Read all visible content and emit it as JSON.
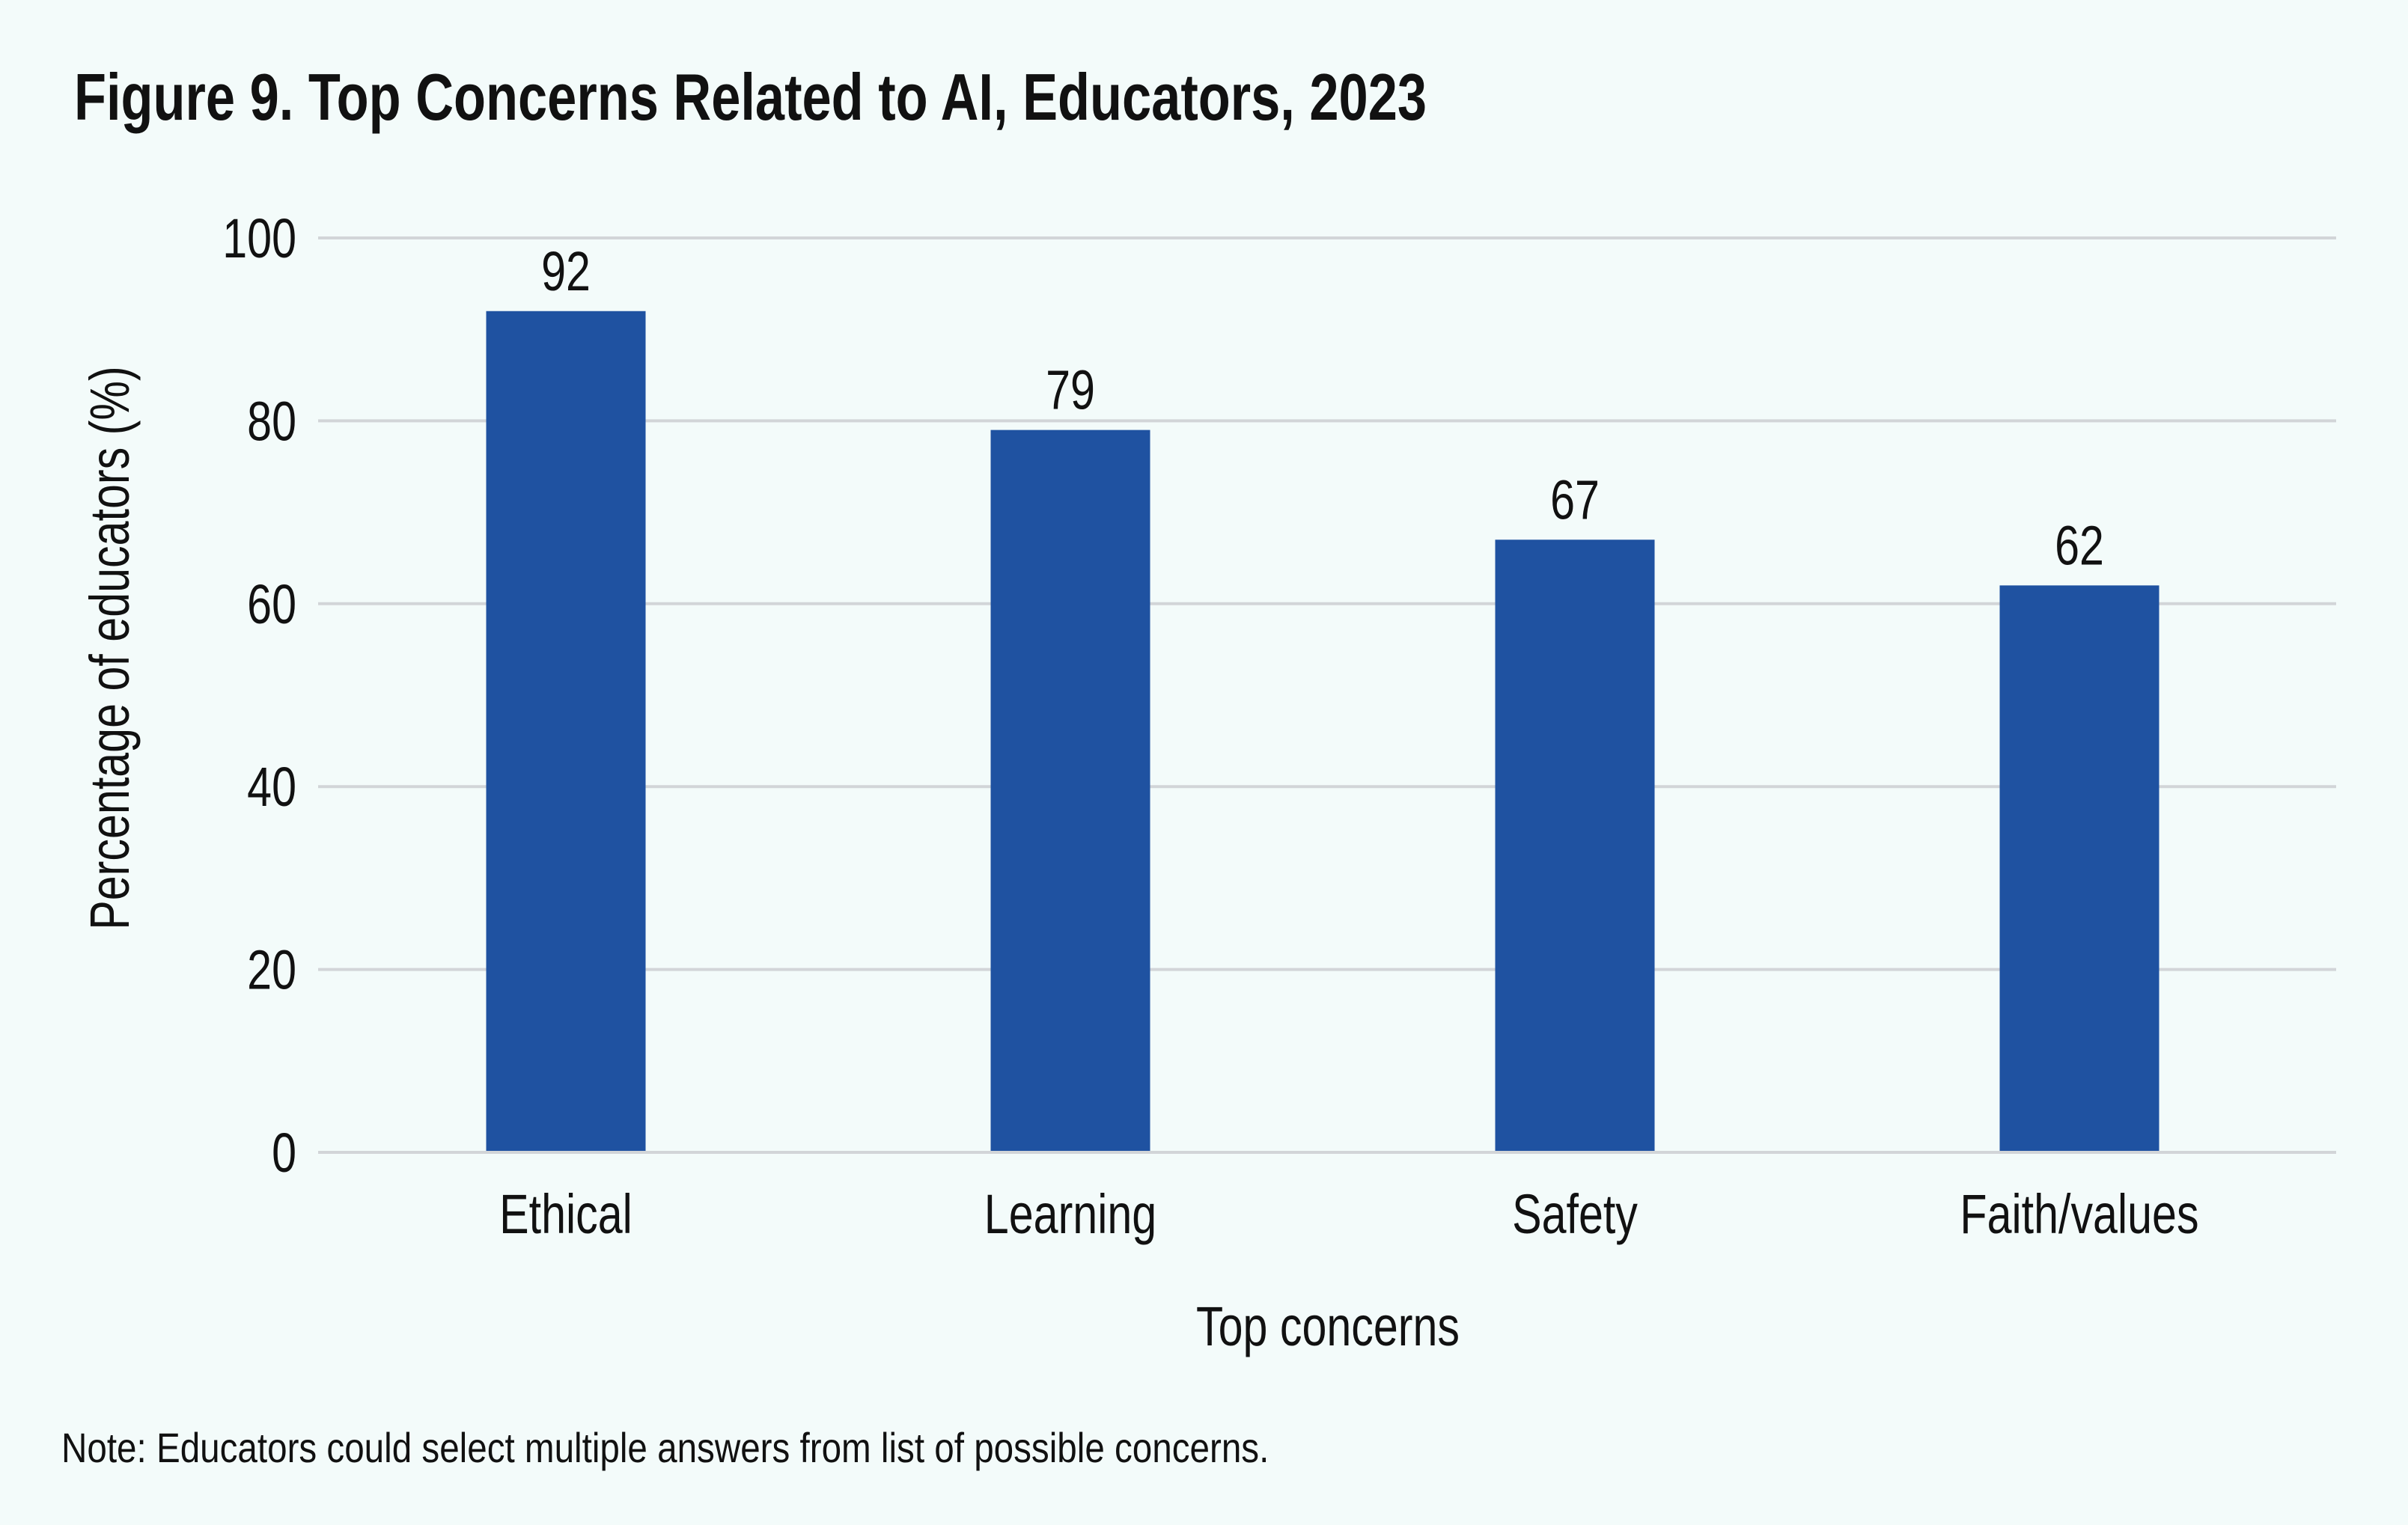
{
  "colors": {
    "background": "#f3fbfa",
    "bar": "#1f52a1",
    "grid": "#d2d5d8",
    "text": "#111111"
  },
  "chart_data": {
    "type": "bar",
    "title": "Figure 9. Top Concerns Related to AI, Educators, 2023",
    "xlabel": "Top concerns",
    "ylabel": "Percentage of educators (%)",
    "categories": [
      "Ethical",
      "Learning",
      "Safety",
      "Faith/values"
    ],
    "values": [
      92,
      79,
      67,
      62
    ],
    "data_labels": [
      "92",
      "79",
      "67",
      "62"
    ],
    "ylim": [
      0,
      100
    ],
    "yticks": [
      0,
      20,
      40,
      60,
      80,
      100
    ],
    "ytick_labels": [
      "0",
      "20",
      "40",
      "60",
      "80",
      "100"
    ],
    "grid": true,
    "legend": "none"
  },
  "note": "Note: Educators could select multiple answers from list of possible concerns."
}
